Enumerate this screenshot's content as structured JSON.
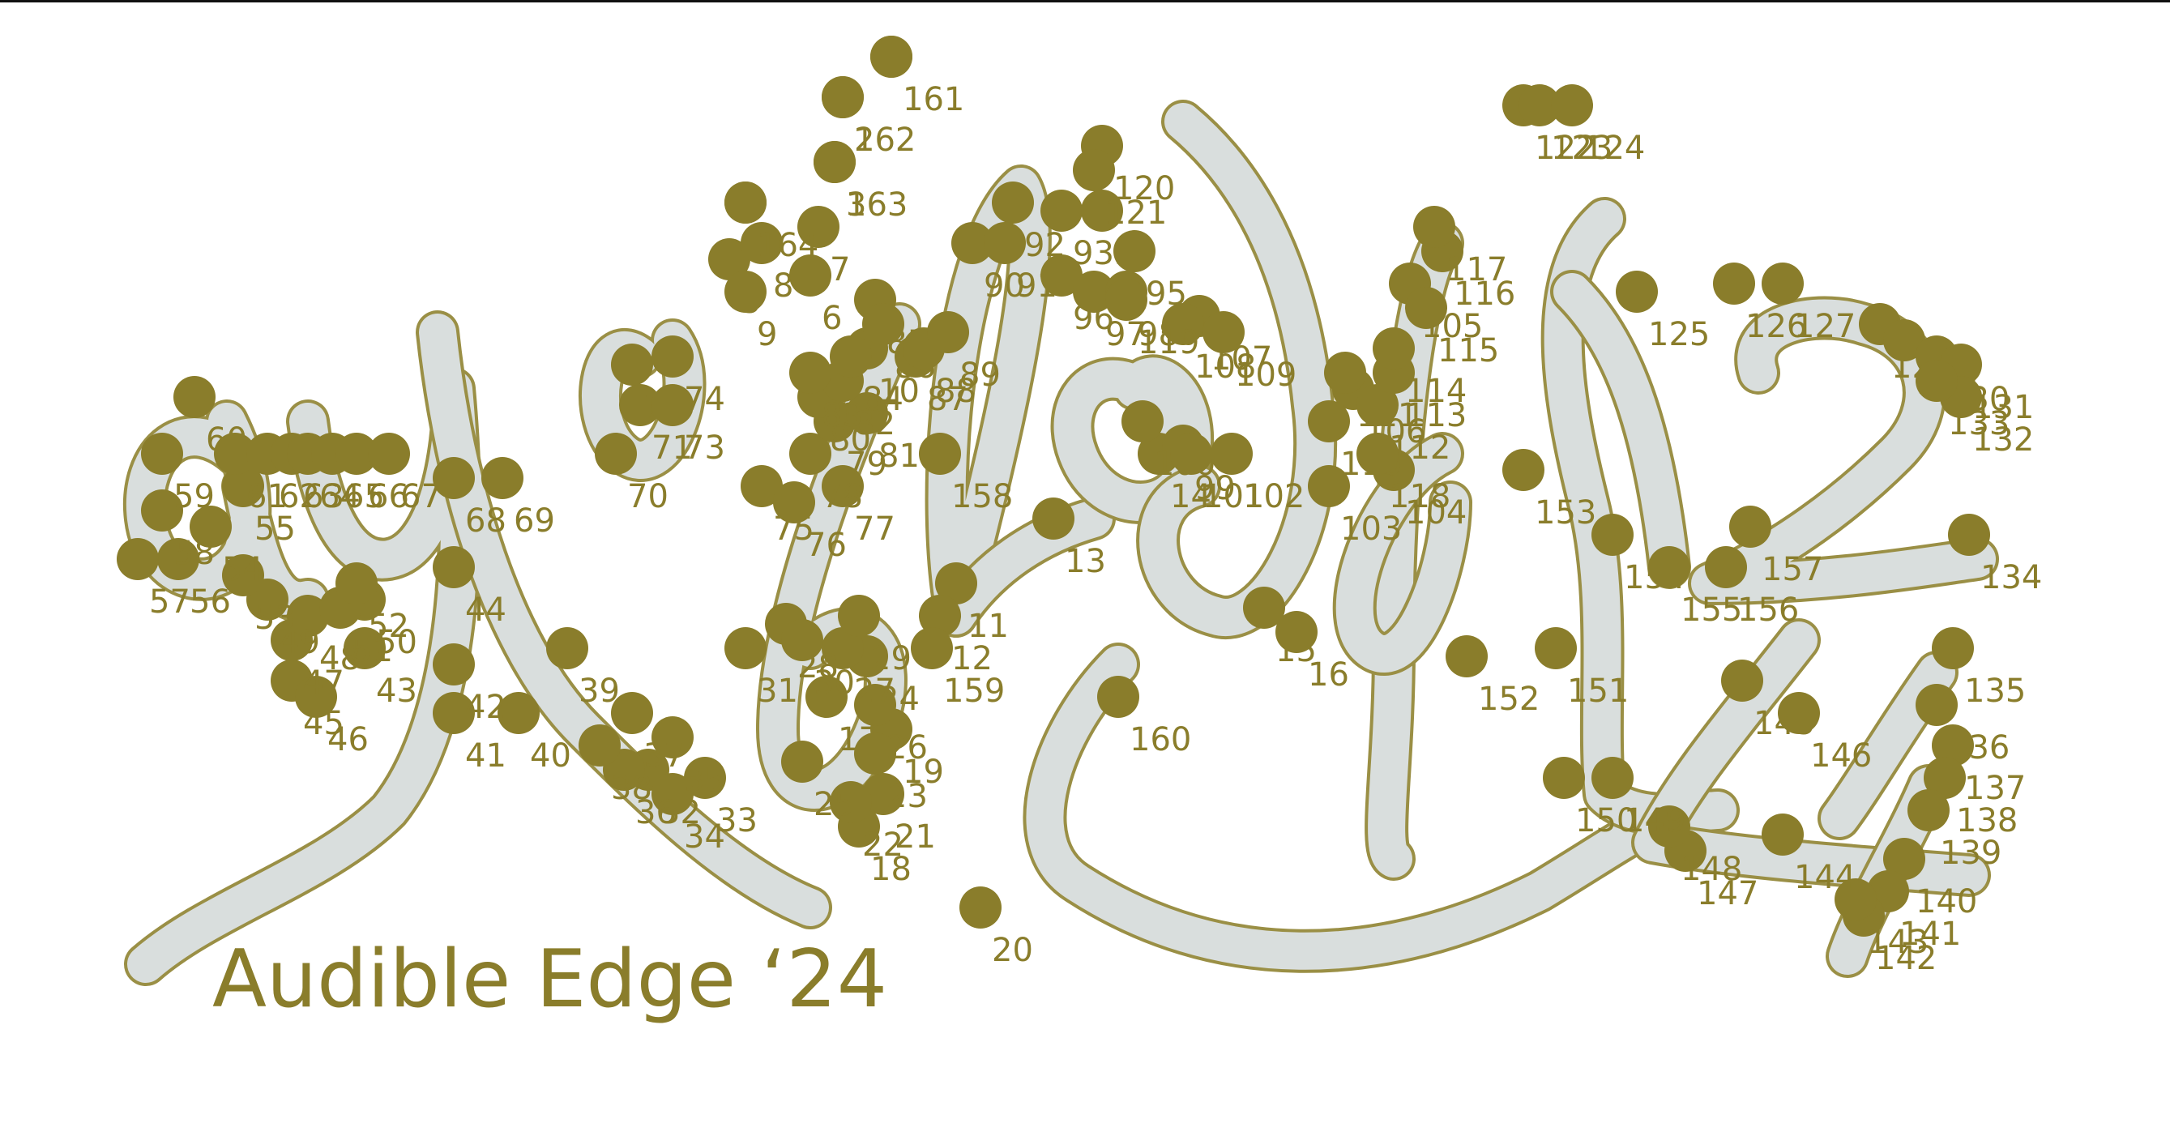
{
  "caption": "Audible Edge ‘24",
  "colors": {
    "accent": "#8a7d2b",
    "stroke_fill": "#d9dedd",
    "stroke_outline": "#9a8f45",
    "background": "#ffffff",
    "top_rule": "#111111"
  },
  "point_labels": [
    "1",
    "2",
    "3",
    "4",
    "5",
    "6",
    "7",
    "8",
    "9",
    "10",
    "11",
    "12",
    "13",
    "14",
    "15",
    "16",
    "17",
    "18",
    "19",
    "20",
    "21",
    "22",
    "23",
    "24",
    "25",
    "26",
    "27",
    "28",
    "29",
    "30",
    "31",
    "32",
    "33",
    "34",
    "35",
    "36",
    "37",
    "38",
    "39",
    "40",
    "41",
    "42",
    "43",
    "44",
    "45",
    "46",
    "47",
    "48",
    "49",
    "50",
    "51",
    "52",
    "53",
    "54",
    "55",
    "56",
    "57",
    "58",
    "59",
    "60",
    "61",
    "62",
    "63",
    "64",
    "65",
    "66",
    "67",
    "68",
    "69",
    "70",
    "71",
    "72",
    "73",
    "74",
    "75",
    "76",
    "77",
    "78",
    "79",
    "80",
    "81",
    "82",
    "83",
    "84",
    "85",
    "86",
    "87",
    "88",
    "89",
    "90",
    "91",
    "92",
    "93",
    "94",
    "95",
    "96",
    "97",
    "98",
    "99",
    "100",
    "101",
    "102",
    "103",
    "104",
    "105",
    "106",
    "107",
    "108",
    "109",
    "110",
    "111",
    "112",
    "113",
    "114",
    "115",
    "116",
    "117",
    "118",
    "119",
    "120",
    "121",
    "122",
    "123",
    "124",
    "125",
    "126",
    "127",
    "128",
    "129",
    "130",
    "131",
    "132",
    "133",
    "134",
    "135",
    "136",
    "137",
    "138",
    "139",
    "140",
    "141",
    "142",
    "143",
    "144",
    "145",
    "146",
    "147",
    "148",
    "149",
    "150",
    "151",
    "152",
    "153",
    "154",
    "155",
    "156",
    "157",
    "158",
    "159",
    "160",
    "161",
    "162",
    "163",
    "164"
  ]
}
